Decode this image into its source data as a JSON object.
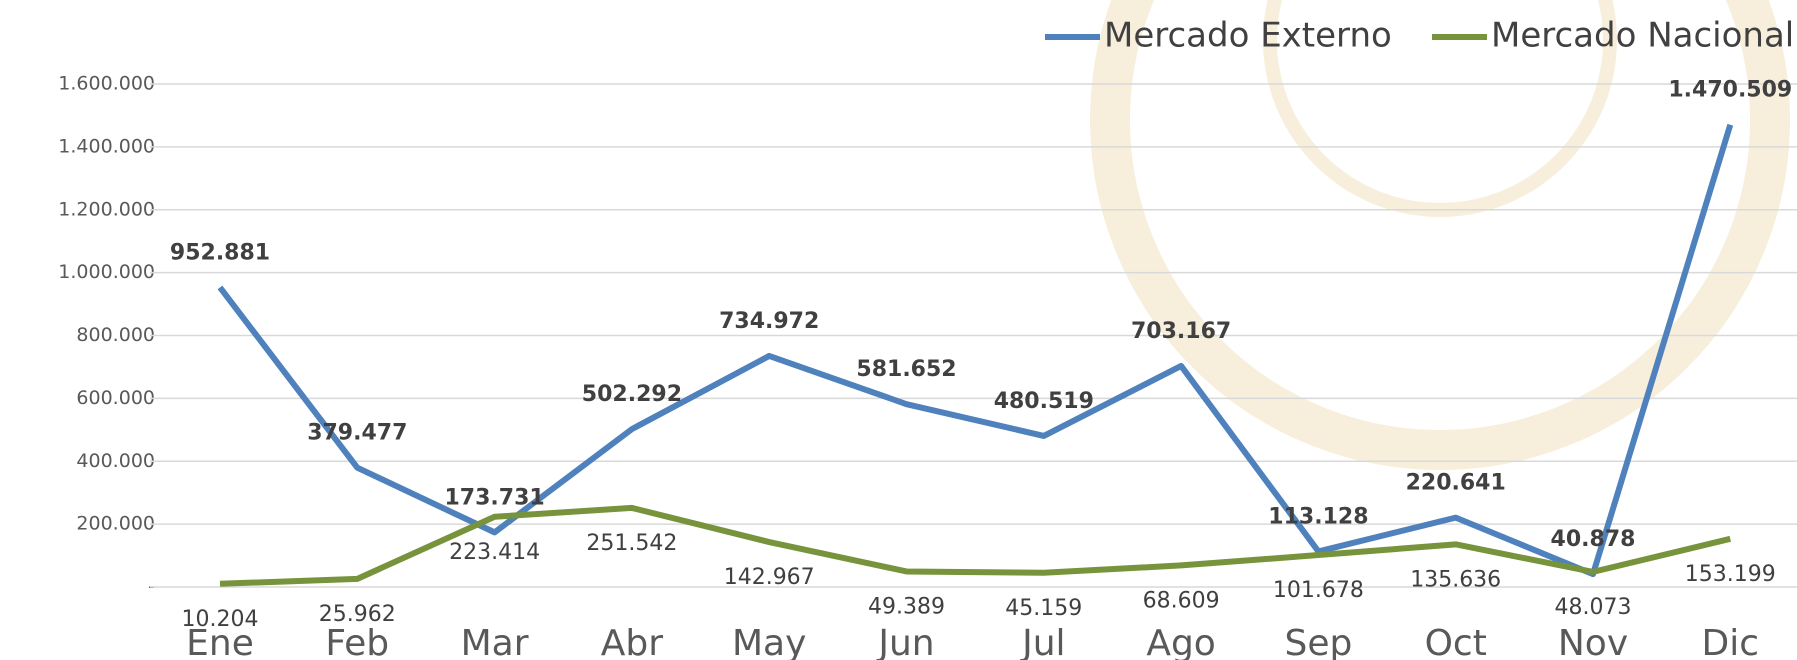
{
  "chart_data": {
    "type": "line",
    "categories": [
      "Ene",
      "Feb",
      "Mar",
      "Abr",
      "May",
      "Jun",
      "Jul",
      "Ago",
      "Sep",
      "Oct",
      "Nov",
      "Dic"
    ],
    "series": [
      {
        "name": "Mercado Externo",
        "color": "#4f81bd",
        "values": [
          952881,
          379477,
          173731,
          502292,
          734972,
          581652,
          480519,
          703167,
          113128,
          220641,
          40878,
          1470509
        ],
        "value_labels": [
          "952.881",
          "379.477",
          "173.731",
          "502.292",
          "734.972",
          "581.652",
          "480.519",
          "703.167",
          "113.128",
          "220.641",
          "40.878",
          "1.470.509"
        ]
      },
      {
        "name": "Mercado Nacional",
        "color": "#77933c",
        "values": [
          10204,
          25962,
          223414,
          251542,
          142967,
          49389,
          45159,
          68609,
          101678,
          135636,
          48073,
          153199
        ],
        "value_labels": [
          "10.204",
          "25.962",
          "223.414",
          "251.542",
          "142.967",
          "49.389",
          "45.159",
          "68.609",
          "101.678",
          "135.636",
          "48.073",
          "153.199"
        ]
      }
    ],
    "ylim": [
      0,
      1600000
    ],
    "yticks": [
      {
        "value": 0,
        "label": "-"
      },
      {
        "value": 200000,
        "label": "200.000"
      },
      {
        "value": 400000,
        "label": "400.000"
      },
      {
        "value": 600000,
        "label": "600.000"
      },
      {
        "value": 800000,
        "label": "800.000"
      },
      {
        "value": 1000000,
        "label": "1.000.000"
      },
      {
        "value": 1200000,
        "label": "1.200.000"
      },
      {
        "value": 1400000,
        "label": "1.400.000"
      },
      {
        "value": 1600000,
        "label": "1.600.000"
      }
    ],
    "grid": true,
    "legend": "top"
  }
}
